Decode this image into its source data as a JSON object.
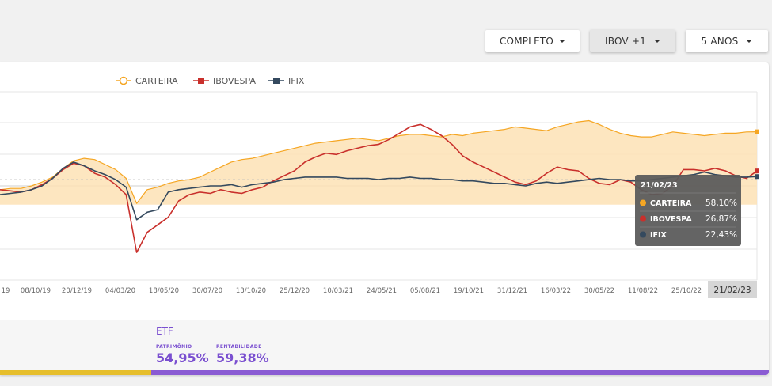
{
  "controls": {
    "period_filter": "COMPLETO",
    "benchmark_filter": "IBOV +1",
    "range_filter": "5 ANOS"
  },
  "colors": {
    "carteira": "#f5a623",
    "carteira_fill": "#fde2b5",
    "ibovespa": "#c9302c",
    "ifix": "#34495e",
    "etf_accent": "#7a4fd0",
    "bar_left": "#e6be2c",
    "bar_right": "#8a5bd3"
  },
  "chart_data": {
    "type": "line",
    "legend": [
      "CARTEIRA",
      "IBOVESPA",
      "IFIX"
    ],
    "legend_position": "top-center",
    "x_tick_labels": [
      "19",
      "08/10/19",
      "20/12/19",
      "04/03/20",
      "18/05/20",
      "30/07/20",
      "13/10/20",
      "25/12/20",
      "10/03/21",
      "24/05/21",
      "05/08/21",
      "19/10/21",
      "31/12/21",
      "16/03/22",
      "30/05/22",
      "11/08/22",
      "25/10/22",
      "21/02/23"
    ],
    "x_highlight": "21/02/23",
    "y_ticks_shown": false,
    "grid": true,
    "series": [
      {
        "name": "CARTEIRA",
        "values": [
          12,
          13,
          13,
          15,
          18,
          22,
          29,
          35,
          37,
          36,
          32,
          28,
          21,
          1,
          12,
          14,
          17,
          19,
          20,
          22,
          26,
          30,
          34,
          36,
          37,
          39,
          41,
          43,
          45,
          47,
          49,
          50,
          51,
          52,
          53,
          52,
          51,
          53,
          55,
          56,
          56,
          55,
          54,
          56,
          55,
          57,
          58,
          59,
          60,
          62,
          61,
          60,
          59,
          62,
          64,
          66,
          67,
          64,
          60,
          57,
          55,
          54,
          54,
          56,
          58,
          57,
          56,
          55,
          56,
          57,
          57,
          58,
          58.1
        ]
      },
      {
        "name": "IBOVESPA",
        "values": [
          12,
          11,
          10,
          12,
          16,
          21,
          28,
          33,
          31,
          25,
          22,
          16,
          8,
          -38,
          -22,
          -16,
          -10,
          3,
          8,
          10,
          9,
          12,
          10,
          9,
          12,
          14,
          19,
          23,
          27,
          34,
          38,
          41,
          40,
          43,
          45,
          47,
          48,
          52,
          57,
          62,
          64,
          60,
          55,
          48,
          39,
          34,
          30,
          26,
          22,
          18,
          16,
          19,
          25,
          30,
          28,
          27,
          21,
          17,
          16,
          20,
          18,
          12,
          8,
          9,
          15,
          28,
          28,
          27,
          29,
          27,
          23,
          21,
          26.87
        ]
      },
      {
        "name": "IFIX",
        "values": [
          8,
          9,
          10,
          12,
          15,
          21,
          29,
          34,
          31,
          27,
          24,
          20,
          14,
          -12,
          -6,
          -4,
          10,
          12,
          13,
          14,
          15,
          15,
          16,
          14,
          16,
          17,
          18,
          20,
          21,
          22,
          22,
          22,
          22,
          21,
          21,
          21,
          20,
          21,
          21,
          22,
          21,
          21,
          20,
          20,
          19,
          19,
          18,
          17,
          17,
          16,
          15,
          17,
          18,
          17,
          18,
          19,
          20,
          21,
          20,
          20,
          19,
          19,
          20,
          21,
          22,
          23,
          24,
          26,
          24,
          23,
          22,
          22,
          22.43
        ]
      }
    ],
    "tooltip": {
      "date": "21/02/23",
      "rows": [
        {
          "name": "CARTEIRA",
          "value": "58,10%"
        },
        {
          "name": "IBOVESPA",
          "value": "26,87%"
        },
        {
          "name": "IFIX",
          "value": "22,43%"
        }
      ]
    }
  },
  "footer": {
    "section_title": "ETF",
    "patrimonio_label": "PATRIMÔNIO",
    "patrimonio_value": "54,95%",
    "rentabilidade_label": "RENTABILIDADE",
    "rentabilidade_value": "59,38%"
  }
}
